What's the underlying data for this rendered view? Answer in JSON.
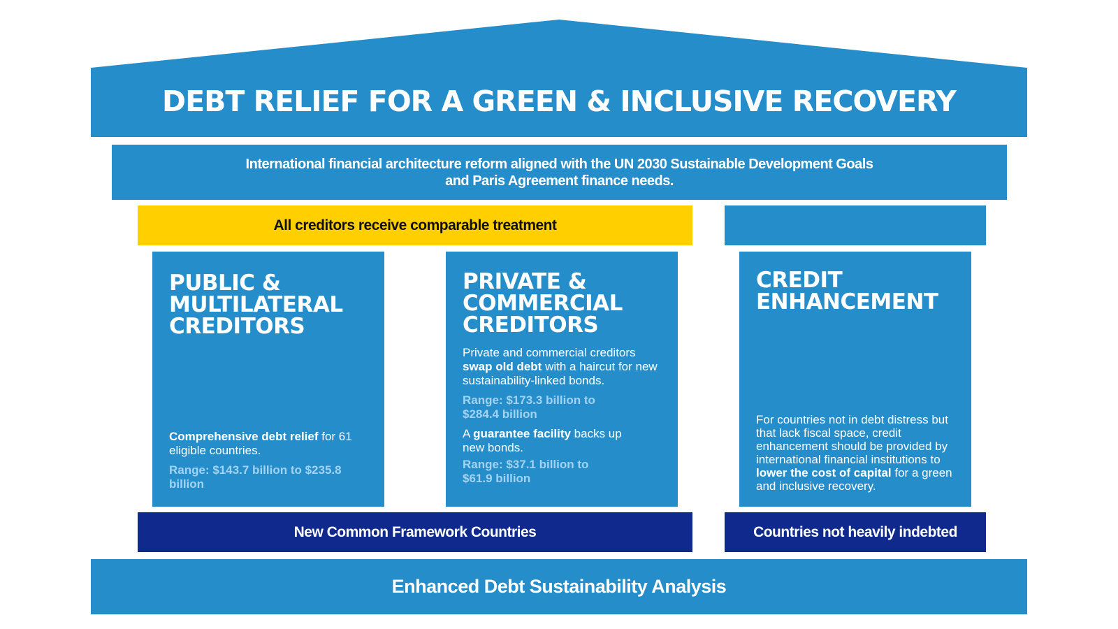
{
  "colors": {
    "blue": "#258dca",
    "yellow": "#ffcf00",
    "navy": "#0f2a8c",
    "range_text": "#a3d3f2"
  },
  "title": "DEBT RELIEF FOR A GREEN & INCLUSIVE RECOVERY",
  "subtitle": {
    "line1": "International financial architecture reform aligned with the UN 2030 Sustainable Development Goals",
    "line2": "and Paris Agreement finance needs."
  },
  "comparable_treatment": "All creditors receive comparable treatment",
  "pillars": [
    {
      "heading": [
        "PUBLIC &",
        "MULTILATERAL",
        "CREDITORS"
      ],
      "text_bold": "Comprehensive debt relief",
      "text_rest": " for 61 eligible countries.",
      "range": "Range: $143.7 billion to $235.8 billion"
    },
    {
      "heading": [
        "PRIVATE &",
        "COMMERCIAL",
        "CREDITORS"
      ],
      "text1_pre": "Private and commercial creditors ",
      "text1_bold": "swap old debt",
      "text1_rest": " with a haircut for new sustainability-linked bonds.",
      "range1": "Range: $173.3 billion to $284.4 billion",
      "text2_pre": "A ",
      "text2_bold": "guarantee facility",
      "text2_rest": " backs up new bonds.",
      "range2": "Range: $37.1 billion to $61.9 billion"
    },
    {
      "heading": [
        "CREDIT",
        "ENHANCEMENT"
      ],
      "text_pre": "For countries not in debt distress but that lack fiscal space, credit enhancement should be provided by international financial institutions to ",
      "text_bold": "lower the cost of capital",
      "text_rest": " for a green and inclusive recovery."
    }
  ],
  "common_framework": "New Common Framework Countries",
  "not_indebted": "Countries not heavily indebted",
  "foundation": "Enhanced Debt Sustainability Analysis"
}
